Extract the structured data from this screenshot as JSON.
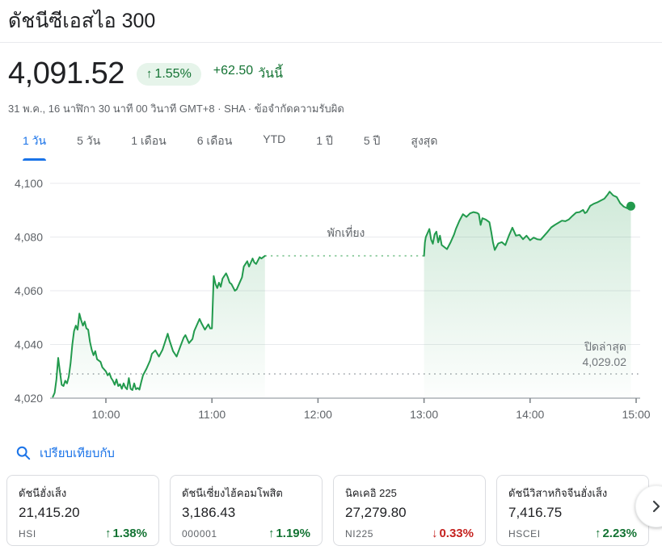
{
  "header": {
    "title": "ดัชนีซีเอสไอ 300"
  },
  "quote": {
    "price": "4,091.52",
    "change_percent_arrow": "↑",
    "change_percent": "1.55%",
    "change_absolute": "+62.50",
    "change_period_label": "วันนี้",
    "timestamp_line": "31 พ.ค., 16 นาฬิกา 30 นาที 00 วินาที GMT+8 · SHA · ข้อจำกัดความรับผิด"
  },
  "range_tabs": [
    {
      "label": "1 วัน",
      "active": true
    },
    {
      "label": "5 วัน",
      "active": false
    },
    {
      "label": "1 เดือน",
      "active": false
    },
    {
      "label": "6 เดือน",
      "active": false
    },
    {
      "label": "YTD",
      "active": false
    },
    {
      "label": "1 ปี",
      "active": false
    },
    {
      "label": "5 ปี",
      "active": false
    },
    {
      "label": "สูงสุด",
      "active": false
    }
  ],
  "chart_data": {
    "type": "line",
    "title": "ดัชนีซีเอสไอ 300 — 1 วัน (ราคาในวัน 09:30–15:00, พักเที่ยง 11:30–13:00)",
    "y_ticks": [
      "4,100",
      "4,080",
      "4,060",
      "4,040",
      "4,020"
    ],
    "y_tick_values": [
      4100,
      4080,
      4060,
      4040,
      4020
    ],
    "ylim": [
      4020,
      4100
    ],
    "x_ticks": [
      "10:00",
      "11:00",
      "12:00",
      "13:00",
      "14:00",
      "15:00"
    ],
    "x_tick_minutes": [
      30,
      90,
      150,
      210,
      270,
      330
    ],
    "xlim_minutes": [
      0,
      330
    ],
    "previous_close": 4029.02,
    "lunch_break": {
      "start_minute": 120,
      "end_minute": 210,
      "level": 4073
    },
    "annotations": {
      "lunch_label": "พักเที่ยง",
      "last_close_label": "ปิดล่าสุด",
      "last_close_value": "4,029.02"
    },
    "line_color": "#229a4d",
    "lunch_dot_color": "#84c796",
    "prev_close_dot_color": "#9aa0a6",
    "grid_color": "#e8eaed",
    "axis_color": "#9aa0a6",
    "tick_label_color": "#5f6368",
    "series": [
      {
        "name": "morning",
        "points": [
          [
            0,
            4020.5
          ],
          [
            1,
            4022
          ],
          [
            2,
            4027
          ],
          [
            3,
            4035
          ],
          [
            4,
            4030
          ],
          [
            5,
            4025
          ],
          [
            6,
            4024.5
          ],
          [
            7,
            4026.5
          ],
          [
            8,
            4025.5
          ],
          [
            9,
            4028
          ],
          [
            10,
            4033
          ],
          [
            11,
            4040
          ],
          [
            12,
            4045
          ],
          [
            13,
            4047
          ],
          [
            14,
            4045.5
          ],
          [
            15,
            4051.5
          ],
          [
            16,
            4049
          ],
          [
            17,
            4047
          ],
          [
            18,
            4048.5
          ],
          [
            19,
            4046
          ],
          [
            20,
            4045.5
          ],
          [
            21,
            4041
          ],
          [
            22,
            4038
          ],
          [
            23,
            4036
          ],
          [
            24,
            4037.5
          ],
          [
            25,
            4034.5
          ],
          [
            27,
            4033.5
          ],
          [
            28,
            4031.5
          ],
          [
            30,
            4030
          ],
          [
            31,
            4028.5
          ],
          [
            32,
            4029.3
          ],
          [
            33,
            4027.5
          ],
          [
            34,
            4026.5
          ],
          [
            35,
            4025
          ],
          [
            36,
            4027
          ],
          [
            37,
            4024.5
          ],
          [
            38,
            4025.2
          ],
          [
            39,
            4023.5
          ],
          [
            40,
            4025.5
          ],
          [
            41,
            4024
          ],
          [
            42,
            4023.3
          ],
          [
            43,
            4027.5
          ],
          [
            44,
            4023.5
          ],
          [
            45,
            4023
          ],
          [
            46,
            4025.5
          ],
          [
            47,
            4023.3
          ],
          [
            48,
            4023.8
          ],
          [
            49,
            4023.2
          ],
          [
            50,
            4026
          ],
          [
            51,
            4028.5
          ],
          [
            53,
            4031
          ],
          [
            55,
            4034
          ],
          [
            56,
            4036.5
          ],
          [
            58,
            4037.8
          ],
          [
            60,
            4035.5
          ],
          [
            62,
            4038
          ],
          [
            63,
            4040
          ],
          [
            65,
            4044
          ],
          [
            66,
            4041.5
          ],
          [
            68,
            4037.5
          ],
          [
            70,
            4035.5
          ],
          [
            72,
            4039
          ],
          [
            74,
            4042.5
          ],
          [
            75,
            4043.5
          ],
          [
            77,
            4040.5
          ],
          [
            79,
            4042
          ],
          [
            80,
            4045
          ],
          [
            82,
            4048
          ],
          [
            83,
            4049.5
          ],
          [
            84,
            4048
          ],
          [
            86,
            4045.5
          ],
          [
            88,
            4047.5
          ],
          [
            89,
            4046
          ],
          [
            90,
            4046
          ],
          [
            91,
            4065.5
          ],
          [
            92,
            4062.5
          ],
          [
            93,
            4061
          ],
          [
            94,
            4063
          ],
          [
            95,
            4061.5
          ],
          [
            96,
            4064.5
          ],
          [
            97,
            4065.5
          ],
          [
            98,
            4066.5
          ],
          [
            99,
            4065
          ],
          [
            100,
            4063
          ],
          [
            101,
            4062.5
          ],
          [
            103,
            4060
          ],
          [
            104,
            4060.5
          ],
          [
            105,
            4062
          ],
          [
            107,
            4065
          ],
          [
            108,
            4069
          ],
          [
            110,
            4071
          ],
          [
            111,
            4069
          ],
          [
            113,
            4072
          ],
          [
            114,
            4070.5
          ],
          [
            115,
            4070
          ],
          [
            117,
            4072.5
          ],
          [
            118,
            4072
          ],
          [
            120,
            4073
          ]
        ]
      },
      {
        "name": "afternoon",
        "points": [
          [
            210,
            4073
          ],
          [
            210.5,
            4078
          ],
          [
            211,
            4080
          ],
          [
            212,
            4081.5
          ],
          [
            213,
            4083
          ],
          [
            214,
            4079
          ],
          [
            215,
            4077.5
          ],
          [
            216,
            4081
          ],
          [
            217,
            4082
          ],
          [
            218,
            4078
          ],
          [
            219,
            4080.5
          ],
          [
            220,
            4077
          ],
          [
            221,
            4076.5
          ],
          [
            223,
            4075.5
          ],
          [
            225,
            4078
          ],
          [
            227,
            4081
          ],
          [
            228,
            4083
          ],
          [
            230,
            4086
          ],
          [
            232,
            4088.5
          ],
          [
            234,
            4087.5
          ],
          [
            236,
            4088.8
          ],
          [
            238,
            4089.3
          ],
          [
            240,
            4089
          ],
          [
            241,
            4088.5
          ],
          [
            242,
            4084.5
          ],
          [
            243,
            4087
          ],
          [
            245,
            4086.5
          ],
          [
            247,
            4085.5
          ],
          [
            248,
            4082
          ],
          [
            249,
            4078
          ],
          [
            250,
            4075.2
          ],
          [
            252,
            4077.6
          ],
          [
            254,
            4078.1
          ],
          [
            256,
            4077
          ],
          [
            258,
            4080.5
          ],
          [
            260,
            4083.5
          ],
          [
            262,
            4080.5
          ],
          [
            264,
            4080.8
          ],
          [
            266,
            4079.2
          ],
          [
            268,
            4080.5
          ],
          [
            270,
            4078.8
          ],
          [
            272,
            4079.8
          ],
          [
            274,
            4079.2
          ],
          [
            276,
            4079
          ],
          [
            278,
            4080.5
          ],
          [
            280,
            4082
          ],
          [
            282,
            4083.6
          ],
          [
            284,
            4084.5
          ],
          [
            286,
            4085.3
          ],
          [
            288,
            4086.1
          ],
          [
            290,
            4085.9
          ],
          [
            292,
            4086.6
          ],
          [
            294,
            4087.9
          ],
          [
            296,
            4089.1
          ],
          [
            298,
            4089.3
          ],
          [
            300,
            4090.1
          ],
          [
            301,
            4088.9
          ],
          [
            302,
            4089.3
          ],
          [
            304,
            4091.6
          ],
          [
            306,
            4092.4
          ],
          [
            308,
            4092.9
          ],
          [
            310,
            4093.6
          ],
          [
            312,
            4094.3
          ],
          [
            314,
            4095.9
          ],
          [
            315,
            4096.9
          ],
          [
            317,
            4095.5
          ],
          [
            319,
            4094.9
          ],
          [
            321,
            4092.6
          ],
          [
            323,
            4091.3
          ],
          [
            325,
            4090.7
          ],
          [
            326,
            4090.6
          ],
          [
            327,
            4091.5
          ]
        ]
      }
    ]
  },
  "compare": {
    "label": "เปรียบเทียบกับ",
    "cards": [
      {
        "name": "ดัชนีฮั่งเส็ง",
        "value": "21,415.20",
        "ticker": "HSI",
        "arrow": "↑",
        "change": "1.38%",
        "direction": "up"
      },
      {
        "name": "ดัชนีเซี่ยงไฮ้คอมโพสิต",
        "value": "3,186.43",
        "ticker": "000001",
        "arrow": "↑",
        "change": "1.19%",
        "direction": "up"
      },
      {
        "name": "นิคเคอิ 225",
        "value": "27,279.80",
        "ticker": "NI225",
        "arrow": "↓",
        "change": "0.33%",
        "direction": "down"
      },
      {
        "name": "ดัชนีวิสาหกิจจีนฮั่งเส็ง",
        "value": "7,416.75",
        "ticker": "HSCEI",
        "arrow": "↑",
        "change": "2.23%",
        "direction": "up"
      }
    ]
  },
  "colors": {
    "positive_text": "#137333",
    "positive_badge_bg": "#e6f4ea",
    "negative_text": "#c5221f",
    "accent_blue": "#1a73e8",
    "chart_line_green": "#229a4d"
  },
  "icons": {
    "search": "magnifier",
    "scroll_right": "chevron-right",
    "up": "↑",
    "down": "↓"
  }
}
